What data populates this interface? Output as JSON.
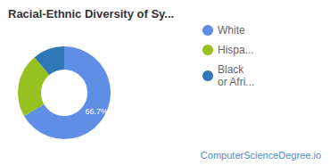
{
  "chart_data": {
    "type": "pie",
    "title": "Racial-Ethnic Diversity of Sy...",
    "categories": [
      "White",
      "Hispa...",
      "Black\nor Afri..."
    ],
    "values": [
      66.7,
      22.2,
      11.1
    ],
    "value_labels": [
      "66.7%",
      null,
      null
    ],
    "colors": [
      "#5f8ee6",
      "#97c11f",
      "#2f77b6"
    ],
    "data_labels": true,
    "legend": "right",
    "annotations": [
      "ComputerScienceDegree.io"
    ]
  }
}
